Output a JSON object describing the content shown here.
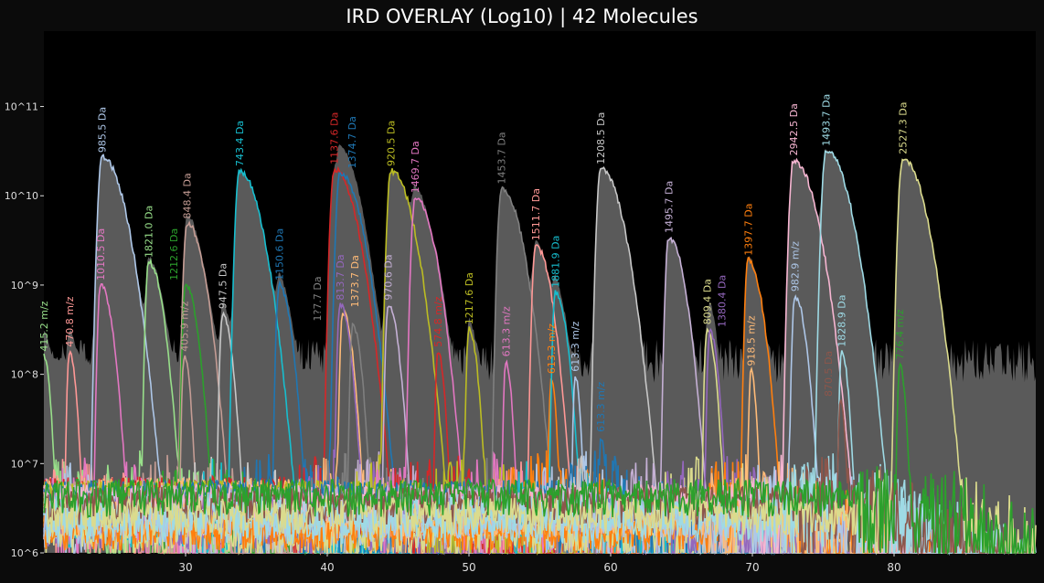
{
  "chart_data": {
    "type": "line",
    "title": "IRD OVERLAY (Log10) | 42 Molecules",
    "xlabel": "",
    "ylabel": "",
    "xlim": [
      20,
      90
    ],
    "ylim": [
      1000000.0,
      700000000000.0
    ],
    "yscale": "log",
    "x_ticks": [
      30,
      40,
      50,
      60,
      70,
      80
    ],
    "y_ticks": [
      1000000.0,
      10000000.0,
      100000000.0,
      1000000000.0,
      10000000000.0,
      100000000000.0
    ],
    "y_tick_labels": [
      "10^6",
      "10^7",
      "10^8",
      "10^9",
      "10^10",
      "10^11"
    ],
    "grid": false,
    "background_fill_color": "#5a5a5a",
    "series": [
      {
        "label": "415.2 m/z",
        "rt": 20.0,
        "apex": 160000000.0,
        "color": "#98df8a"
      },
      {
        "label": "470.8 m/z",
        "rt": 21.8,
        "apex": 180000000.0,
        "color": "#ff9896"
      },
      {
        "label": "985.5 Da",
        "rt": 24.1,
        "apex": 27000000000.0,
        "color": "#aec7e8"
      },
      {
        "label": "1010.5 Da",
        "rt": 24.0,
        "apex": 1000000000.0,
        "color": "#e377c2"
      },
      {
        "label": "1821.0 Da",
        "rt": 27.4,
        "apex": 1800000000.0,
        "color": "#98df8a"
      },
      {
        "label": "848.4 Da",
        "rt": 30.1,
        "apex": 4900000000.0,
        "color": "#c49c94"
      },
      {
        "label": "1212.6 Da",
        "rt": 30.0,
        "apex": 1000000000.0,
        "color": "#2ca02c"
      },
      {
        "label": "405.9 m/z",
        "rt": 29.9,
        "apex": 160000000.0,
        "color": "#c49c94"
      },
      {
        "label": "947.5 Da",
        "rt": 32.6,
        "apex": 480000000.0,
        "color": "#c7c7c7"
      },
      {
        "label": "743.4 Da",
        "rt": 33.8,
        "apex": 19000000000.0,
        "color": "#17becf"
      },
      {
        "label": "1150.6 Da",
        "rt": 36.6,
        "apex": 1000000000.0,
        "color": "#1f77b4"
      },
      {
        "label": "1137.6 Da",
        "rt": 40.5,
        "apex": 20000000000.0,
        "color": "#d62728"
      },
      {
        "label": "1374.7 Da",
        "rt": 40.9,
        "apex": 18000000000.0,
        "color": "#1f77b4"
      },
      {
        "label": "1373.7 Da",
        "rt": 41.1,
        "apex": 500000000.0,
        "color": "#ffbb78"
      },
      {
        "label": "813.7 Da",
        "rt": 40.9,
        "apex": 600000000.0,
        "color": "#9467bd"
      },
      {
        "label": "1?7.7 Da",
        "rt": 41.8,
        "apex": 350000000.0,
        "color": "#7f7f7f"
      },
      {
        "label": "970.6 Da",
        "rt": 44.3,
        "apex": 600000000.0,
        "color": "#c5b0d5"
      },
      {
        "label": "920.5 Da",
        "rt": 44.5,
        "apex": 19000000000.0,
        "color": "#bcbd22"
      },
      {
        "label": "1469.7 Da",
        "rt": 46.2,
        "apex": 9500000000.0,
        "color": "#e377c2"
      },
      {
        "label": "574.8 m/z",
        "rt": 47.8,
        "apex": 180000000.0,
        "color": "#d62728"
      },
      {
        "label": "1217.6 Da",
        "rt": 50.0,
        "apex": 320000000.0,
        "color": "#bcbd22"
      },
      {
        "label": "613.3 m/z",
        "rt": 52.6,
        "apex": 140000000.0,
        "color": "#e377c2"
      },
      {
        "label": "1453.7 Da",
        "rt": 52.3,
        "apex": 12000000000.0,
        "color": "#7f7f7f"
      },
      {
        "label": "1511.7 Da",
        "rt": 54.7,
        "apex": 2800000000.0,
        "color": "#ff9896"
      },
      {
        "label": "613.3 m/z",
        "rt": 55.8,
        "apex": 90000000.0,
        "color": "#ff7f0e"
      },
      {
        "label": "1881.9 Da",
        "rt": 56.1,
        "apex": 830000000.0,
        "color": "#17becf"
      },
      {
        "label": "613.3 m/z",
        "rt": 57.5,
        "apex": 95000000.0,
        "color": "#aec7e8"
      },
      {
        "label": "613.3 m/z",
        "rt": 59.3,
        "apex": 20000000.0,
        "color": "#1f77b4"
      },
      {
        "label": "1208.5 Da",
        "rt": 59.3,
        "apex": 20000000000.0,
        "color": "#c7c7c7"
      },
      {
        "label": "1495.7 Da",
        "rt": 64.1,
        "apex": 3400000000.0,
        "color": "#c5b0d5"
      },
      {
        "label": "809.4 Da",
        "rt": 66.8,
        "apex": 320000000.0,
        "color": "#dbdb8d"
      },
      {
        "label": "1380.4 Da",
        "rt": 67.0,
        "apex": 300000000.0,
        "color": "#9467bd"
      },
      {
        "label": "1397.7 Da",
        "rt": 69.7,
        "apex": 1900000000.0,
        "color": "#ff7f0e"
      },
      {
        "label": "918.5 m/z",
        "rt": 69.9,
        "apex": 110000000.0,
        "color": "#ffbb78"
      },
      {
        "label": "2942.5 Da",
        "rt": 72.9,
        "apex": 25000000000.0,
        "color": "#f7b6d2"
      },
      {
        "label": "982.9 m/z",
        "rt": 73.0,
        "apex": 750000000.0,
        "color": "#aec7e8"
      },
      {
        "label": "1493.7 Da",
        "rt": 75.2,
        "apex": 32000000000.0,
        "color": "#9edae5"
      },
      {
        "label": "1828.9 Da",
        "rt": 76.3,
        "apex": 180000000.0,
        "color": "#9edae5"
      },
      {
        "label": "870.5 Da",
        "rt": 76.2,
        "apex": 50000000.0,
        "color": "#8c564b"
      },
      {
        "label": "2527.3 Da",
        "rt": 80.6,
        "apex": 26000000000.0,
        "color": "#dbdb8d"
      },
      {
        "label": "776.4 m/z",
        "rt": 80.4,
        "apex": 130000000.0,
        "color": "#2ca02c"
      }
    ]
  }
}
